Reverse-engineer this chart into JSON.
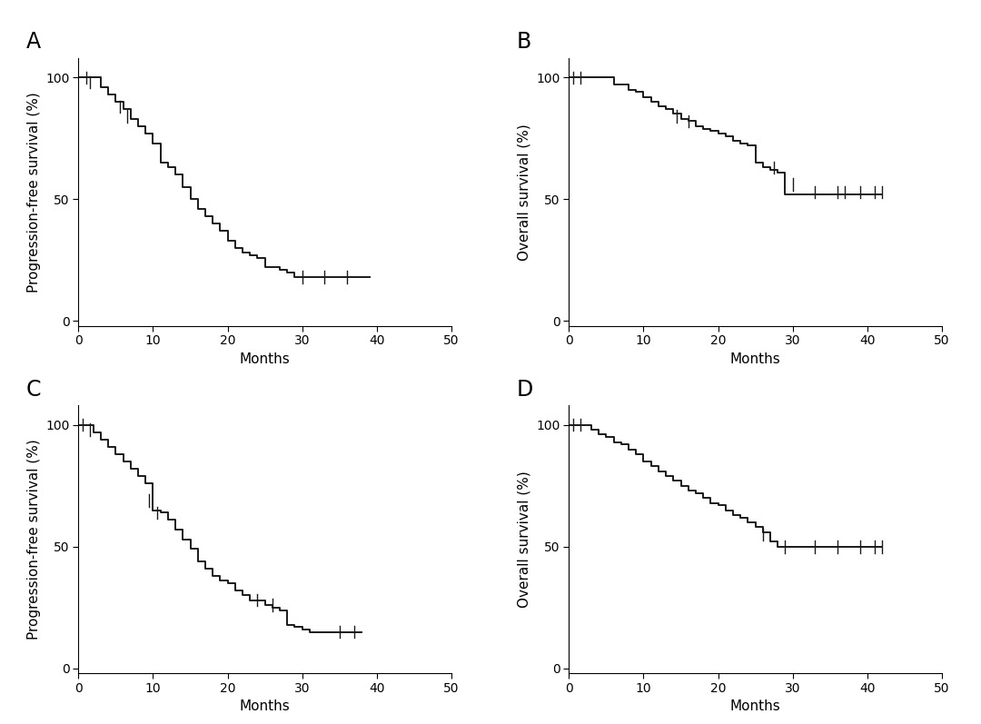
{
  "panels": [
    {
      "label": "A",
      "ylabel": "Progression-free survival (%)",
      "xlabel": "Months",
      "xlim": [
        0,
        50
      ],
      "ylim": [
        -2,
        108
      ],
      "yticks": [
        0,
        50,
        100
      ],
      "xticks": [
        0,
        10,
        20,
        30,
        40,
        50
      ],
      "times": [
        0,
        2,
        3,
        4,
        5,
        6,
        7,
        8,
        9,
        10,
        11,
        12,
        13,
        14,
        15,
        16,
        17,
        18,
        19,
        20,
        21,
        22,
        23,
        24,
        25,
        26,
        27,
        28,
        29,
        30,
        31,
        32,
        39
      ],
      "surv": [
        100,
        100,
        96,
        93,
        90,
        87,
        83,
        80,
        77,
        73,
        65,
        63,
        60,
        55,
        50,
        46,
        43,
        40,
        37,
        33,
        30,
        28,
        27,
        26,
        22,
        22,
        21,
        20,
        18,
        18,
        18,
        18,
        18
      ],
      "censors_t": [
        1,
        1.5,
        5.5,
        6.5,
        30,
        33,
        36
      ],
      "censors_s": [
        100,
        98,
        88,
        84,
        18,
        18,
        18
      ]
    },
    {
      "label": "B",
      "ylabel": "Overall survival (%)",
      "xlabel": "Months",
      "xlim": [
        0,
        50
      ],
      "ylim": [
        -2,
        108
      ],
      "yticks": [
        0,
        50,
        100
      ],
      "xticks": [
        0,
        10,
        20,
        30,
        40,
        50
      ],
      "times": [
        0,
        1,
        2,
        5,
        6,
        8,
        9,
        10,
        11,
        12,
        13,
        14,
        15,
        16,
        17,
        18,
        19,
        20,
        21,
        22,
        23,
        24,
        25,
        26,
        27,
        28,
        29,
        42
      ],
      "surv": [
        100,
        100,
        100,
        100,
        97,
        95,
        94,
        92,
        90,
        88,
        87,
        85,
        83,
        82,
        80,
        79,
        78,
        77,
        76,
        74,
        73,
        72,
        65,
        63,
        62,
        61,
        52,
        52
      ],
      "censors_t": [
        0.5,
        1.5,
        14.5,
        16,
        27.5,
        30,
        33,
        36,
        37,
        39,
        41,
        42
      ],
      "censors_s": [
        100,
        100,
        84,
        82,
        63,
        56,
        53,
        53,
        53,
        53,
        53,
        53
      ]
    },
    {
      "label": "C",
      "ylabel": "Progression-free survival (%)",
      "xlabel": "Months",
      "xlim": [
        0,
        50
      ],
      "ylim": [
        -2,
        108
      ],
      "yticks": [
        0,
        50,
        100
      ],
      "xticks": [
        0,
        10,
        20,
        30,
        40,
        50
      ],
      "times": [
        0,
        1,
        2,
        3,
        4,
        5,
        6,
        7,
        8,
        9,
        10,
        11,
        12,
        13,
        14,
        15,
        16,
        17,
        18,
        19,
        20,
        21,
        22,
        23,
        24,
        25,
        26,
        27,
        28,
        29,
        30,
        31,
        32,
        38
      ],
      "surv": [
        100,
        100,
        97,
        94,
        91,
        88,
        85,
        82,
        79,
        76,
        65,
        64,
        61,
        57,
        53,
        49,
        44,
        41,
        38,
        36,
        35,
        32,
        30,
        28,
        28,
        26,
        25,
        24,
        18,
        17,
        16,
        15,
        15,
        15
      ],
      "censors_t": [
        0.5,
        1.5,
        9.5,
        10.5,
        24,
        26,
        35,
        37
      ],
      "censors_s": [
        100,
        98,
        69,
        64,
        28,
        26,
        15,
        15
      ]
    },
    {
      "label": "D",
      "ylabel": "Overall survival (%)",
      "xlabel": "Months",
      "xlim": [
        0,
        50
      ],
      "ylim": [
        -2,
        108
      ],
      "yticks": [
        0,
        50,
        100
      ],
      "xticks": [
        0,
        10,
        20,
        30,
        40,
        50
      ],
      "times": [
        0,
        1,
        2,
        3,
        4,
        5,
        6,
        7,
        8,
        9,
        10,
        11,
        12,
        13,
        14,
        15,
        16,
        17,
        18,
        19,
        20,
        21,
        22,
        23,
        24,
        25,
        26,
        27,
        28,
        42
      ],
      "surv": [
        100,
        100,
        100,
        98,
        96,
        95,
        93,
        92,
        90,
        88,
        85,
        83,
        81,
        79,
        77,
        75,
        73,
        72,
        70,
        68,
        67,
        65,
        63,
        62,
        60,
        58,
        56,
        52,
        50,
        50
      ],
      "censors_t": [
        0.5,
        1.5,
        26,
        29,
        33,
        36,
        39,
        41,
        42
      ],
      "censors_s": [
        100,
        100,
        55,
        50,
        50,
        50,
        50,
        50,
        50
      ]
    }
  ],
  "line_color": "#1a1a1a",
  "line_width": 1.4,
  "censor_color": "#1a1a1a",
  "label_fontsize": 17,
  "tick_fontsize": 10,
  "axis_label_fontsize": 11,
  "background_color": "#ffffff"
}
